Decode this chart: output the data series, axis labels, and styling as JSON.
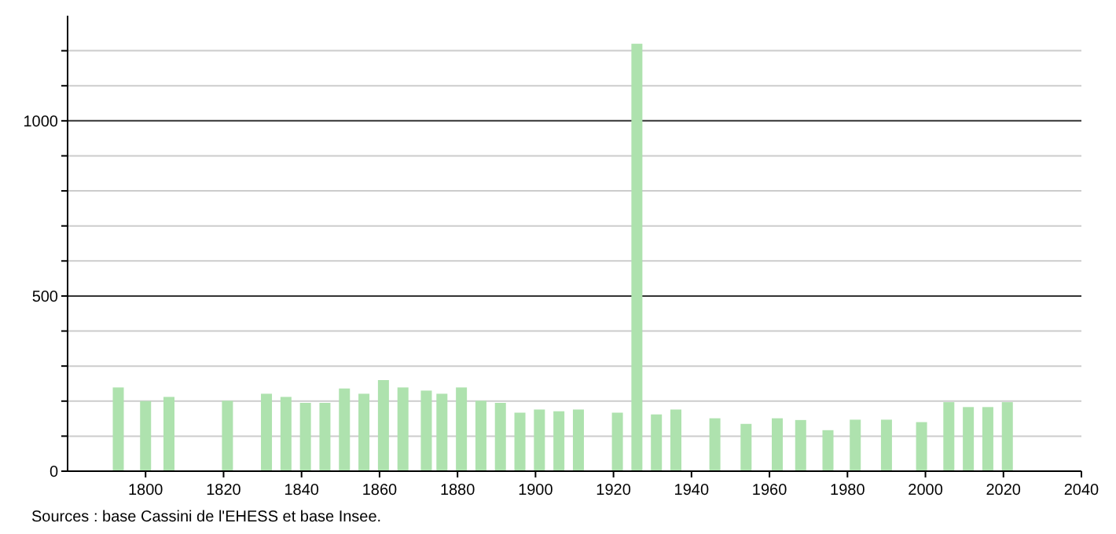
{
  "chart_data": {
    "type": "bar",
    "x": [
      1793,
      1800,
      1806,
      1821,
      1831,
      1836,
      1841,
      1846,
      1851,
      1856,
      1861,
      1866,
      1872,
      1876,
      1881,
      1886,
      1891,
      1896,
      1901,
      1906,
      1911,
      1921,
      1926,
      1931,
      1936,
      1946,
      1954,
      1962,
      1968,
      1975,
      1982,
      1990,
      1999,
      2006,
      2011,
      2016,
      2021
    ],
    "values": [
      239,
      200,
      212,
      201,
      221,
      212,
      195,
      195,
      236,
      221,
      260,
      239,
      230,
      221,
      239,
      201,
      195,
      167,
      176,
      171,
      176,
      167,
      1220,
      162,
      176,
      151,
      135,
      151,
      146,
      117,
      147,
      147,
      140,
      197,
      183,
      183,
      197
    ],
    "color": "#aee2ae",
    "xlim": [
      1780,
      2040
    ],
    "xticks": [
      1800,
      1820,
      1840,
      1860,
      1880,
      1900,
      1920,
      1940,
      1960,
      1980,
      2000,
      2020,
      2040
    ],
    "ylim": [
      0,
      1300
    ],
    "yticks": [
      0,
      {
        "value": 100,
        "label": null
      },
      {
        "value": 200,
        "label": null
      },
      {
        "value": 300,
        "label": null
      },
      {
        "value": 400,
        "label": null
      },
      500,
      {
        "value": 600,
        "label": null
      },
      {
        "value": 700,
        "label": null
      },
      {
        "value": 800,
        "label": null
      },
      {
        "value": 900,
        "label": null
      },
      1000,
      {
        "value": 1100,
        "label": null
      },
      {
        "value": 1200,
        "label": null
      }
    ],
    "grid": "y",
    "annotations": [
      "Sources : base Cassini de l'EHESS et base Insee."
    ]
  }
}
